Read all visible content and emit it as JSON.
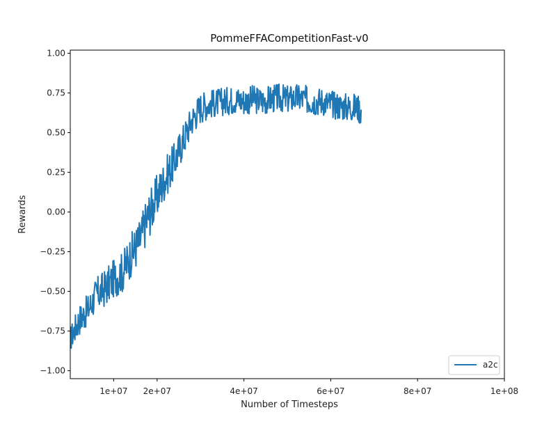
{
  "chart_data": {
    "type": "line",
    "title": "PommeFFACompetitionFast-v0",
    "xlabel": "Number of Timesteps",
    "ylabel": "Rewards",
    "xlim": [
      0,
      100000000
    ],
    "ylim": [
      -1.05,
      1.02
    ],
    "xticks": [
      10000000,
      20000000,
      40000000,
      60000000,
      80000000,
      100000000
    ],
    "xtick_labels": [
      "1e+07",
      "2e+07",
      "4e+07",
      "6e+07",
      "8e+07",
      "1e+08"
    ],
    "yticks": [
      -1.0,
      -0.75,
      -0.5,
      -0.25,
      0.0,
      0.25,
      0.5,
      0.75,
      1.0
    ],
    "ytick_labels": [
      "−1.00",
      "−0.75",
      "−0.50",
      "−0.25",
      "0.00",
      "0.25",
      "0.50",
      "0.75",
      "1.00"
    ],
    "grid": false,
    "legend_position": "lower right",
    "series": [
      {
        "name": "a2c",
        "color": "#1f77b4",
        "x": [
          0,
          2000000,
          4000000,
          6000000,
          8000000,
          10000000,
          12000000,
          14000000,
          16000000,
          18000000,
          20000000,
          22000000,
          24000000,
          26000000,
          28000000,
          30000000,
          32000000,
          34000000,
          36000000,
          38000000,
          40000000,
          42000000,
          44000000,
          46000000,
          48000000,
          50000000,
          52000000,
          54000000,
          56000000,
          58000000,
          60000000,
          62000000,
          64000000,
          66000000,
          67000000
        ],
        "y": [
          -0.8,
          -0.68,
          -0.62,
          -0.52,
          -0.48,
          -0.42,
          -0.38,
          -0.27,
          -0.18,
          -0.02,
          0.1,
          0.22,
          0.32,
          0.45,
          0.58,
          0.66,
          0.68,
          0.69,
          0.7,
          0.71,
          0.7,
          0.71,
          0.7,
          0.71,
          0.72,
          0.71,
          0.72,
          0.71,
          0.7,
          0.7,
          0.68,
          0.67,
          0.66,
          0.66,
          0.64
        ],
        "noise": [
          0.08,
          0.1,
          0.1,
          0.11,
          0.12,
          0.12,
          0.13,
          0.14,
          0.14,
          0.15,
          0.14,
          0.13,
          0.12,
          0.11,
          0.1,
          0.1,
          0.09,
          0.09,
          0.09,
          0.09,
          0.09,
          0.09,
          0.09,
          0.09,
          0.09,
          0.09,
          0.09,
          0.09,
          0.09,
          0.09,
          0.09,
          0.09,
          0.09,
          0.09,
          0.09
        ]
      }
    ]
  }
}
